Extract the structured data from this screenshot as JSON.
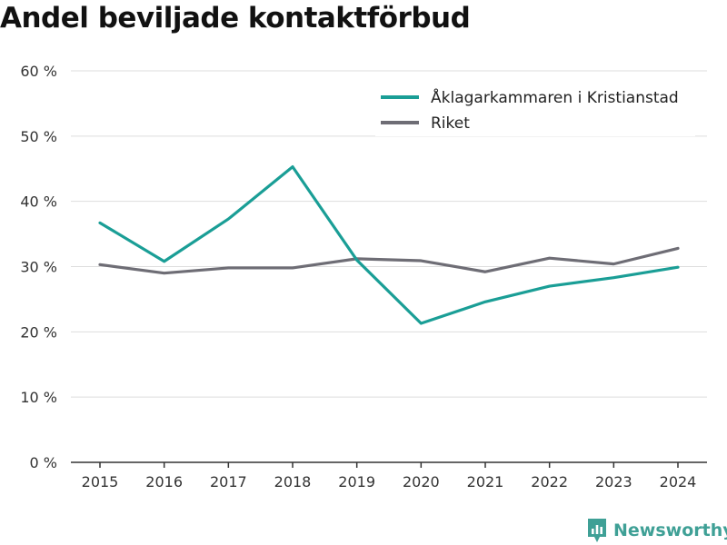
{
  "chart_data": {
    "type": "line",
    "title": "Andel beviljade kontaktförbud",
    "xlabel": "",
    "ylabel": "",
    "x": [
      "2015",
      "2016",
      "2017",
      "2018",
      "2019",
      "2020",
      "2021",
      "2022",
      "2023",
      "2024"
    ],
    "ylim": [
      0,
      60
    ],
    "yticks": [
      0,
      10,
      20,
      30,
      40,
      50,
      60
    ],
    "ytick_labels": [
      "0 %",
      "10 %",
      "20 %",
      "30 %",
      "40 %",
      "50 %",
      "60 %"
    ],
    "grid": true,
    "legend_position": "top-right",
    "series": [
      {
        "name": "Åklagarkammaren i Kristianstad",
        "color": "#1a9e96",
        "values": [
          36.7,
          30.8,
          37.3,
          45.3,
          31.0,
          21.3,
          24.6,
          27.0,
          28.3,
          29.9
        ]
      },
      {
        "name": "Riket",
        "color": "#6e6d75",
        "values": [
          30.3,
          29.0,
          29.8,
          29.8,
          31.2,
          30.9,
          29.2,
          31.3,
          30.4,
          32.8
        ]
      }
    ]
  },
  "brand": {
    "name": "Newsworthy",
    "icon": "newsworthy-logo-icon"
  },
  "colors": {
    "grid": "#dddddd",
    "axis": "#333333",
    "brand": "#3fa096"
  }
}
